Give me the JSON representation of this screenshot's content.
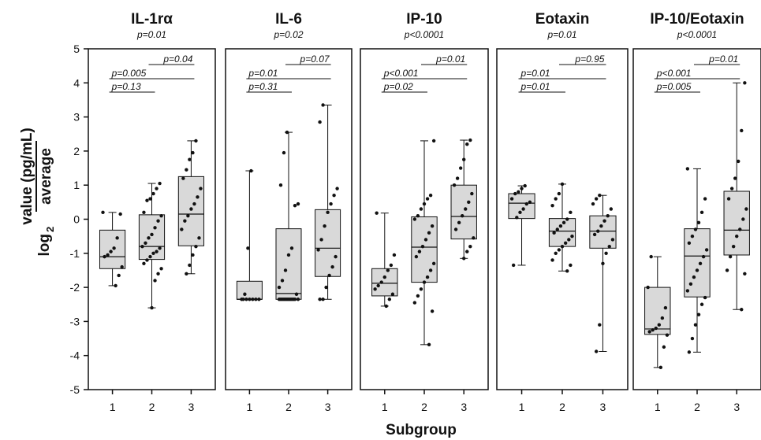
{
  "chart_data": {
    "type": "box",
    "xlabel": "Subgroup",
    "ylabel_main": "value (pg/mL)",
    "ylabel_denominator": "average",
    "ylabel_prefix": "log",
    "ylabel_subscript": "2",
    "ylim": [
      -5,
      5
    ],
    "yticks": [
      5,
      4,
      3,
      2,
      1,
      0,
      -1,
      -2,
      -3,
      -4,
      -5
    ],
    "categories": [
      "1",
      "2",
      "3"
    ],
    "colors": {
      "box_fill": "#d9d9d9",
      "stroke": "#111111",
      "point": "#111111"
    },
    "panels": [
      {
        "title": "IL-1rα",
        "overall_p": "p=0.01",
        "boxes": [
          {
            "group": "1",
            "whisker_low": -1.95,
            "q1": -1.45,
            "median": -1.1,
            "q3": -0.32,
            "whisker_high": 0.2,
            "points": [
              0.2,
              0.15,
              -0.55,
              -0.85,
              -0.95,
              -1.05,
              -1.1,
              -1.4,
              -1.65,
              -1.95
            ]
          },
          {
            "group": "2",
            "whisker_low": -2.6,
            "q1": -1.18,
            "median": -0.8,
            "q3": 0.13,
            "whisker_high": 1.05,
            "points": [
              1.05,
              0.9,
              0.75,
              0.6,
              0.55,
              0.2,
              0.1,
              -0.05,
              -0.25,
              -0.45,
              -0.55,
              -0.7,
              -0.8,
              -0.85,
              -0.95,
              -1.0,
              -1.1,
              -1.2,
              -1.3,
              -1.45,
              -1.6,
              -1.8,
              -2.6
            ]
          },
          {
            "group": "3",
            "whisker_low": -1.6,
            "q1": -0.78,
            "median": 0.15,
            "q3": 1.25,
            "whisker_high": 2.3,
            "points": [
              2.3,
              1.95,
              1.75,
              1.45,
              1.2,
              0.9,
              0.65,
              0.45,
              0.3,
              0.1,
              -0.05,
              -0.3,
              -0.55,
              -0.8,
              -1.05,
              -1.35,
              -1.6
            ]
          }
        ],
        "comparisons": [
          {
            "label": "p=0.13",
            "from": "1",
            "to": "2"
          },
          {
            "label": "p=0.005",
            "from": "1",
            "to": "3"
          },
          {
            "label": "p=0.04",
            "from": "2",
            "to": "3"
          }
        ]
      },
      {
        "title": "IL-6",
        "overall_p": "p=0.02",
        "boxes": [
          {
            "group": "1",
            "whisker_low": -2.35,
            "q1": -2.35,
            "median": -2.35,
            "q3": -1.82,
            "whisker_high": 1.42,
            "points": [
              1.42,
              -0.85,
              -2.2,
              -2.35,
              -2.35,
              -2.35,
              -2.35,
              -2.35,
              -2.35,
              -2.35
            ]
          },
          {
            "group": "2",
            "whisker_low": -2.35,
            "q1": -2.35,
            "median": -2.18,
            "q3": -0.28,
            "whisker_high": 2.55,
            "points": [
              2.55,
              1.95,
              1.0,
              0.45,
              0.4,
              -0.85,
              -1.05,
              -1.5,
              -1.8,
              -2.0,
              -2.2,
              -2.35,
              -2.35,
              -2.35,
              -2.35,
              -2.35,
              -2.35,
              -2.35,
              -2.35,
              -2.35,
              -2.35,
              -2.35,
              -2.35
            ]
          },
          {
            "group": "3",
            "whisker_low": -2.35,
            "q1": -1.68,
            "median": -0.85,
            "q3": 0.28,
            "whisker_high": 3.35,
            "points": [
              3.35,
              2.85,
              0.9,
              0.7,
              0.45,
              0.2,
              -0.2,
              -0.6,
              -0.9,
              -1.1,
              -1.4,
              -1.65,
              -2.0,
              -2.35,
              -2.35
            ]
          }
        ],
        "comparisons": [
          {
            "label": "p=0.31",
            "from": "1",
            "to": "2"
          },
          {
            "label": "p=0.01",
            "from": "1",
            "to": "3"
          },
          {
            "label": "p=0.07",
            "from": "2",
            "to": "3"
          }
        ]
      },
      {
        "title": "IP-10",
        "overall_p": "p<0.0001",
        "boxes": [
          {
            "group": "1",
            "whisker_low": -2.55,
            "q1": -2.25,
            "median": -1.88,
            "q3": -1.45,
            "whisker_high": 0.18,
            "points": [
              0.18,
              -1.05,
              -1.35,
              -1.5,
              -1.7,
              -1.85,
              -1.95,
              -2.05,
              -2.2,
              -2.35,
              -2.55
            ]
          },
          {
            "group": "2",
            "whisker_low": -3.68,
            "q1": -1.85,
            "median": -0.82,
            "q3": 0.07,
            "whisker_high": 2.3,
            "points": [
              2.3,
              0.7,
              0.6,
              0.45,
              0.3,
              0.1,
              0.0,
              -0.2,
              -0.4,
              -0.6,
              -0.8,
              -0.95,
              -1.1,
              -1.3,
              -1.5,
              -1.7,
              -1.85,
              -2.05,
              -2.25,
              -2.45,
              -2.7,
              -3.68
            ]
          },
          {
            "group": "3",
            "whisker_low": -1.15,
            "q1": -0.58,
            "median": 0.08,
            "q3": 1.0,
            "whisker_high": 2.32,
            "points": [
              2.32,
              2.2,
              1.75,
              1.5,
              1.2,
              1.0,
              0.75,
              0.5,
              0.3,
              0.1,
              -0.1,
              -0.3,
              -0.55,
              -0.8,
              -0.95,
              -1.15
            ]
          }
        ],
        "comparisons": [
          {
            "label": "p=0.02",
            "from": "1",
            "to": "2"
          },
          {
            "label": "p<0.001",
            "from": "1",
            "to": "3"
          },
          {
            "label": "p=0.01",
            "from": "2",
            "to": "3"
          }
        ]
      },
      {
        "title": "Eotaxin",
        "overall_p": "p=0.01",
        "boxes": [
          {
            "group": "1",
            "whisker_low": -1.35,
            "q1": 0.02,
            "median": 0.47,
            "q3": 0.75,
            "whisker_high": 0.98,
            "points": [
              0.98,
              0.9,
              0.8,
              0.75,
              0.6,
              0.5,
              0.45,
              0.3,
              0.2,
              0.05,
              -1.35
            ]
          },
          {
            "group": "2",
            "whisker_low": -1.52,
            "q1": -0.8,
            "median": -0.35,
            "q3": 0.02,
            "whisker_high": 1.03,
            "points": [
              1.03,
              0.75,
              0.6,
              0.4,
              0.2,
              0.0,
              -0.1,
              -0.2,
              -0.3,
              -0.4,
              -0.5,
              -0.6,
              -0.7,
              -0.8,
              -0.9,
              -1.0,
              -1.2,
              -1.35,
              -1.52
            ]
          },
          {
            "group": "3",
            "whisker_low": -3.88,
            "q1": -0.85,
            "median": -0.35,
            "q3": 0.1,
            "whisker_high": 0.7,
            "points": [
              0.7,
              0.6,
              0.45,
              0.3,
              0.1,
              -0.05,
              -0.2,
              -0.35,
              -0.45,
              -0.6,
              -0.8,
              -1.0,
              -1.3,
              -3.1,
              -3.88
            ]
          }
        ],
        "comparisons": [
          {
            "label": "p=0.01",
            "from": "1",
            "to": "2"
          },
          {
            "label": "p=0.01",
            "from": "1",
            "to": "3"
          },
          {
            "label": "p=0.95",
            "from": "2",
            "to": "3"
          }
        ]
      },
      {
        "title": "IP-10/Eotaxin",
        "overall_p": "p<0.0001",
        "boxes": [
          {
            "group": "1",
            "whisker_low": -4.35,
            "q1": -3.38,
            "median": -3.22,
            "q3": -2.0,
            "whisker_high": -1.1,
            "points": [
              -1.1,
              -2.0,
              -2.6,
              -2.9,
              -3.1,
              -3.2,
              -3.25,
              -3.3,
              -3.4,
              -3.75,
              -4.35
            ]
          },
          {
            "group": "2",
            "whisker_low": -3.9,
            "q1": -2.28,
            "median": -1.08,
            "q3": -0.28,
            "whisker_high": 1.48,
            "points": [
              1.48,
              0.6,
              0.2,
              -0.1,
              -0.3,
              -0.5,
              -0.7,
              -0.9,
              -1.1,
              -1.3,
              -1.5,
              -1.7,
              -1.9,
              -2.1,
              -2.3,
              -2.5,
              -2.8,
              -3.1,
              -3.5,
              -3.9
            ]
          },
          {
            "group": "3",
            "whisker_low": -2.65,
            "q1": -1.05,
            "median": -0.32,
            "q3": 0.82,
            "whisker_high": 4.0,
            "points": [
              4.0,
              2.6,
              1.7,
              1.2,
              0.9,
              0.6,
              0.3,
              0.0,
              -0.3,
              -0.5,
              -0.8,
              -1.1,
              -1.5,
              -1.6,
              -2.65
            ]
          }
        ],
        "comparisons": [
          {
            "label": "p=0.005",
            "from": "1",
            "to": "2"
          },
          {
            "label": "p<0.001",
            "from": "1",
            "to": "3"
          },
          {
            "label": "p=0.01",
            "from": "2",
            "to": "3"
          }
        ]
      }
    ]
  }
}
